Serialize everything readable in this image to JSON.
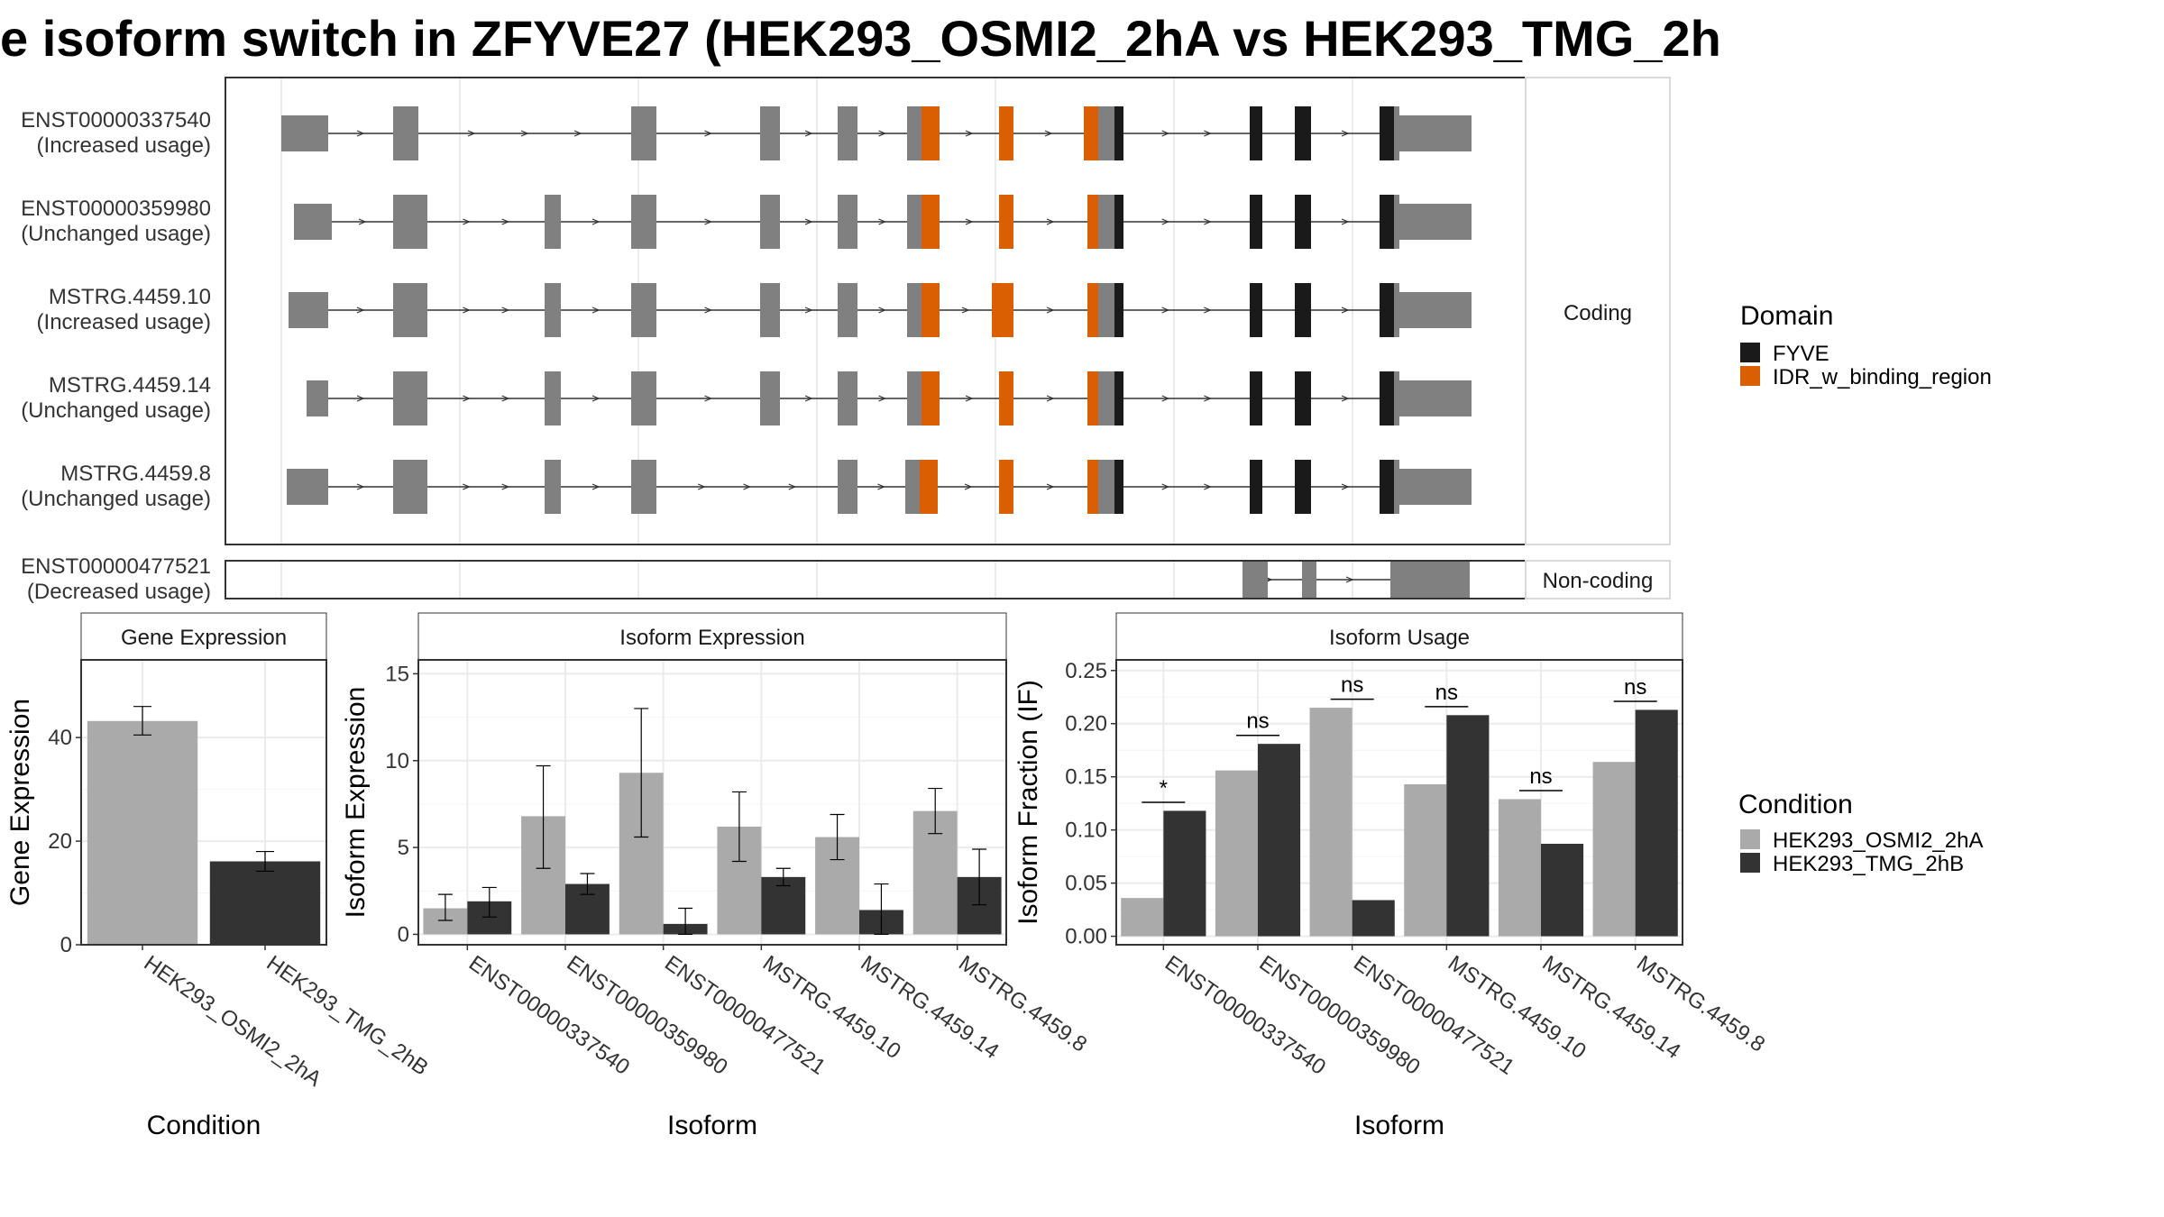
{
  "title": "e isoform switch in ZFYVE27 (HEK293_OSMI2_2hA vs HEK293_TMG_2h",
  "colors": {
    "light": "#aaaaaa",
    "dark": "#333333",
    "exon": "#808080",
    "fyve": "#1a1a1a",
    "idr": "#d95f02"
  },
  "chart_data": [
    {
      "type": "gene-structure",
      "panel_labels": {
        "coding": "Coding",
        "noncoding": "Non-coding"
      },
      "isoforms": [
        {
          "id": "ENST00000337540",
          "status": "(Increased usage)",
          "group": "coding"
        },
        {
          "id": "ENST00000359980",
          "status": "(Unchanged usage)",
          "group": "coding"
        },
        {
          "id": "MSTRG.4459.10",
          "status": "(Increased usage)",
          "group": "coding"
        },
        {
          "id": "MSTRG.4459.14",
          "status": "(Unchanged usage)",
          "group": "coding"
        },
        {
          "id": "MSTRG.4459.8",
          "status": "(Unchanged usage)",
          "group": "coding"
        },
        {
          "id": "ENST00000477521",
          "status": "(Decreased usage)",
          "group": "noncoding"
        }
      ],
      "legend": {
        "title": "Domain",
        "entries": [
          {
            "name": "FYVE",
            "color": "#1a1a1a"
          },
          {
            "name": "IDR_w_binding_region",
            "color": "#d95f02"
          }
        ]
      }
    },
    {
      "type": "bar",
      "strip": "Gene Expression",
      "xlabel": "Condition",
      "ylabel": "Gene Expression",
      "categories": [
        "HEK293_OSMI2_2hA",
        "HEK293_TMG_2hB"
      ],
      "values": [
        43.2,
        16.1
      ],
      "err_low": [
        40.5,
        14.2
      ],
      "err_high": [
        46.0,
        18.0
      ],
      "ylim": [
        0,
        55
      ],
      "yticks": [
        0,
        20,
        40
      ]
    },
    {
      "type": "bar",
      "strip": "Isoform Expression",
      "xlabel": "Isoform",
      "ylabel": "Isoform Expression",
      "categories": [
        "ENST00000337540",
        "ENST00000359980",
        "ENST00000477521",
        "MSTRG.4459.10",
        "MSTRG.4459.14",
        "MSTRG.4459.8"
      ],
      "series": [
        {
          "values": [
            1.5,
            6.8,
            9.3,
            6.2,
            5.6,
            7.1
          ],
          "low": [
            0.8,
            3.8,
            5.6,
            4.2,
            4.3,
            5.8
          ],
          "high": [
            2.3,
            9.7,
            13.0,
            8.2,
            6.9,
            8.4
          ]
        },
        {
          "values": [
            1.9,
            2.9,
            0.6,
            3.3,
            1.4,
            3.3
          ],
          "low": [
            1.0,
            2.3,
            0.0,
            2.8,
            0.0,
            1.7
          ],
          "high": [
            2.7,
            3.5,
            1.5,
            3.8,
            2.9,
            4.9
          ]
        }
      ],
      "ylim": [
        -0.6,
        15.8
      ],
      "yticks": [
        0,
        5,
        10,
        15
      ]
    },
    {
      "type": "bar",
      "strip": "Isoform Usage",
      "xlabel": "Isoform",
      "ylabel": "Isoform Fraction (IF)",
      "categories": [
        "ENST00000337540",
        "ENST00000359980",
        "ENST00000477521",
        "MSTRG.4459.10",
        "MSTRG.4459.14",
        "MSTRG.4459.8"
      ],
      "series": [
        {
          "values": [
            0.036,
            0.156,
            0.215,
            0.143,
            0.129,
            0.164
          ]
        },
        {
          "values": [
            0.118,
            0.181,
            0.034,
            0.208,
            0.087,
            0.213
          ]
        }
      ],
      "significance": [
        "*",
        "ns",
        "ns",
        "ns",
        "ns",
        "ns"
      ],
      "ylim": [
        -0.008,
        0.26
      ],
      "yticks": [
        0.0,
        0.05,
        0.1,
        0.15,
        0.2,
        0.25
      ],
      "ytick_labels": [
        "0.00",
        "0.05",
        "0.10",
        "0.15",
        "0.20",
        "0.25"
      ]
    }
  ],
  "condition_legend": {
    "title": "Condition",
    "entries": [
      {
        "name": "HEK293_OSMI2_2hA",
        "color": "#aaaaaa"
      },
      {
        "name": "HEK293_TMG_2hB",
        "color": "#333333"
      }
    ]
  }
}
